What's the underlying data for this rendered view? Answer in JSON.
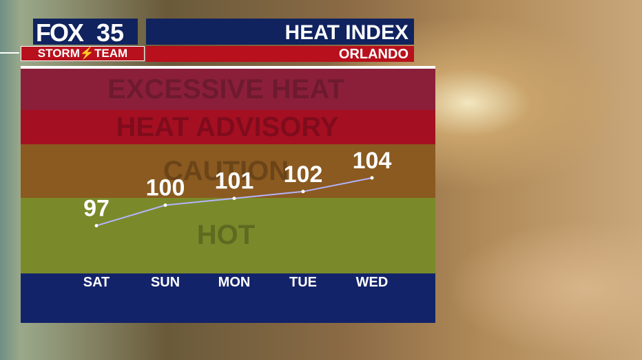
{
  "header": {
    "logo": "FOX",
    "channel": "35",
    "team_left": "STORM",
    "team_right": "TEAM",
    "title": "HEAT INDEX",
    "location": "ORLANDO"
  },
  "bands": [
    "EXCESSIVE HEAT",
    "HEAT ADVISORY",
    "CAUTION",
    "HOT"
  ],
  "chart_data": {
    "type": "line",
    "categories": [
      "SAT",
      "SUN",
      "MON",
      "TUE",
      "WED"
    ],
    "values": [
      97,
      100,
      101,
      102,
      104
    ],
    "color": "#b4b4ff",
    "ylim": [
      90,
      120
    ]
  }
}
